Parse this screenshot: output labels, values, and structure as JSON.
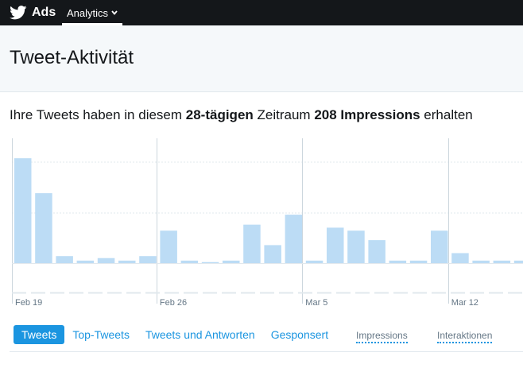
{
  "topbar": {
    "brand_label": "Ads",
    "brand_icon": "twitter-bird-icon",
    "nav_label": "Analytics",
    "nav_icon": "chevron-down-icon"
  },
  "header": {
    "title": "Tweet-Aktivität"
  },
  "summary": {
    "prefix": "Ihre Tweets haben in diesem ",
    "period": "28-tägigen",
    "middle": " Zeitraum ",
    "impressions": "208 Impressions",
    "suffix": " erhalten"
  },
  "chart_data": {
    "type": "bar",
    "x_tick_labels": [
      "Feb 19",
      "Feb 26",
      "Mar 5",
      "Mar 12"
    ],
    "x_ticks_at_bar_index": [
      0,
      7,
      14,
      21
    ],
    "values": [
      21,
      14,
      1.4,
      0.5,
      1,
      0.5,
      1.4,
      6.5,
      0.5,
      0.2,
      0.5,
      7.7,
      3.6,
      9.7,
      0.5,
      7.1,
      6.5,
      4.6,
      0.5,
      0.5,
      6.5,
      2,
      0.5,
      0.5,
      0.5
    ],
    "ylim": [
      0,
      25
    ],
    "grid": true,
    "colors": {
      "bar": "#bcdcf5",
      "grid": "#e1e8ed",
      "week_divider": "#ccd6dd",
      "axis_label": "#657786"
    }
  },
  "tabs": [
    {
      "label": "Tweets",
      "active": true
    },
    {
      "label": "Top-Tweets",
      "active": false
    },
    {
      "label": "Tweets und Antworten",
      "active": false
    },
    {
      "label": "Gesponsert",
      "active": false
    }
  ],
  "legend": {
    "impressions": "Impressions",
    "interactions": "Interaktionen"
  },
  "colors": {
    "topbar": "#14171a",
    "accent": "#1b95e0",
    "header_bg": "#f5f8fa"
  }
}
